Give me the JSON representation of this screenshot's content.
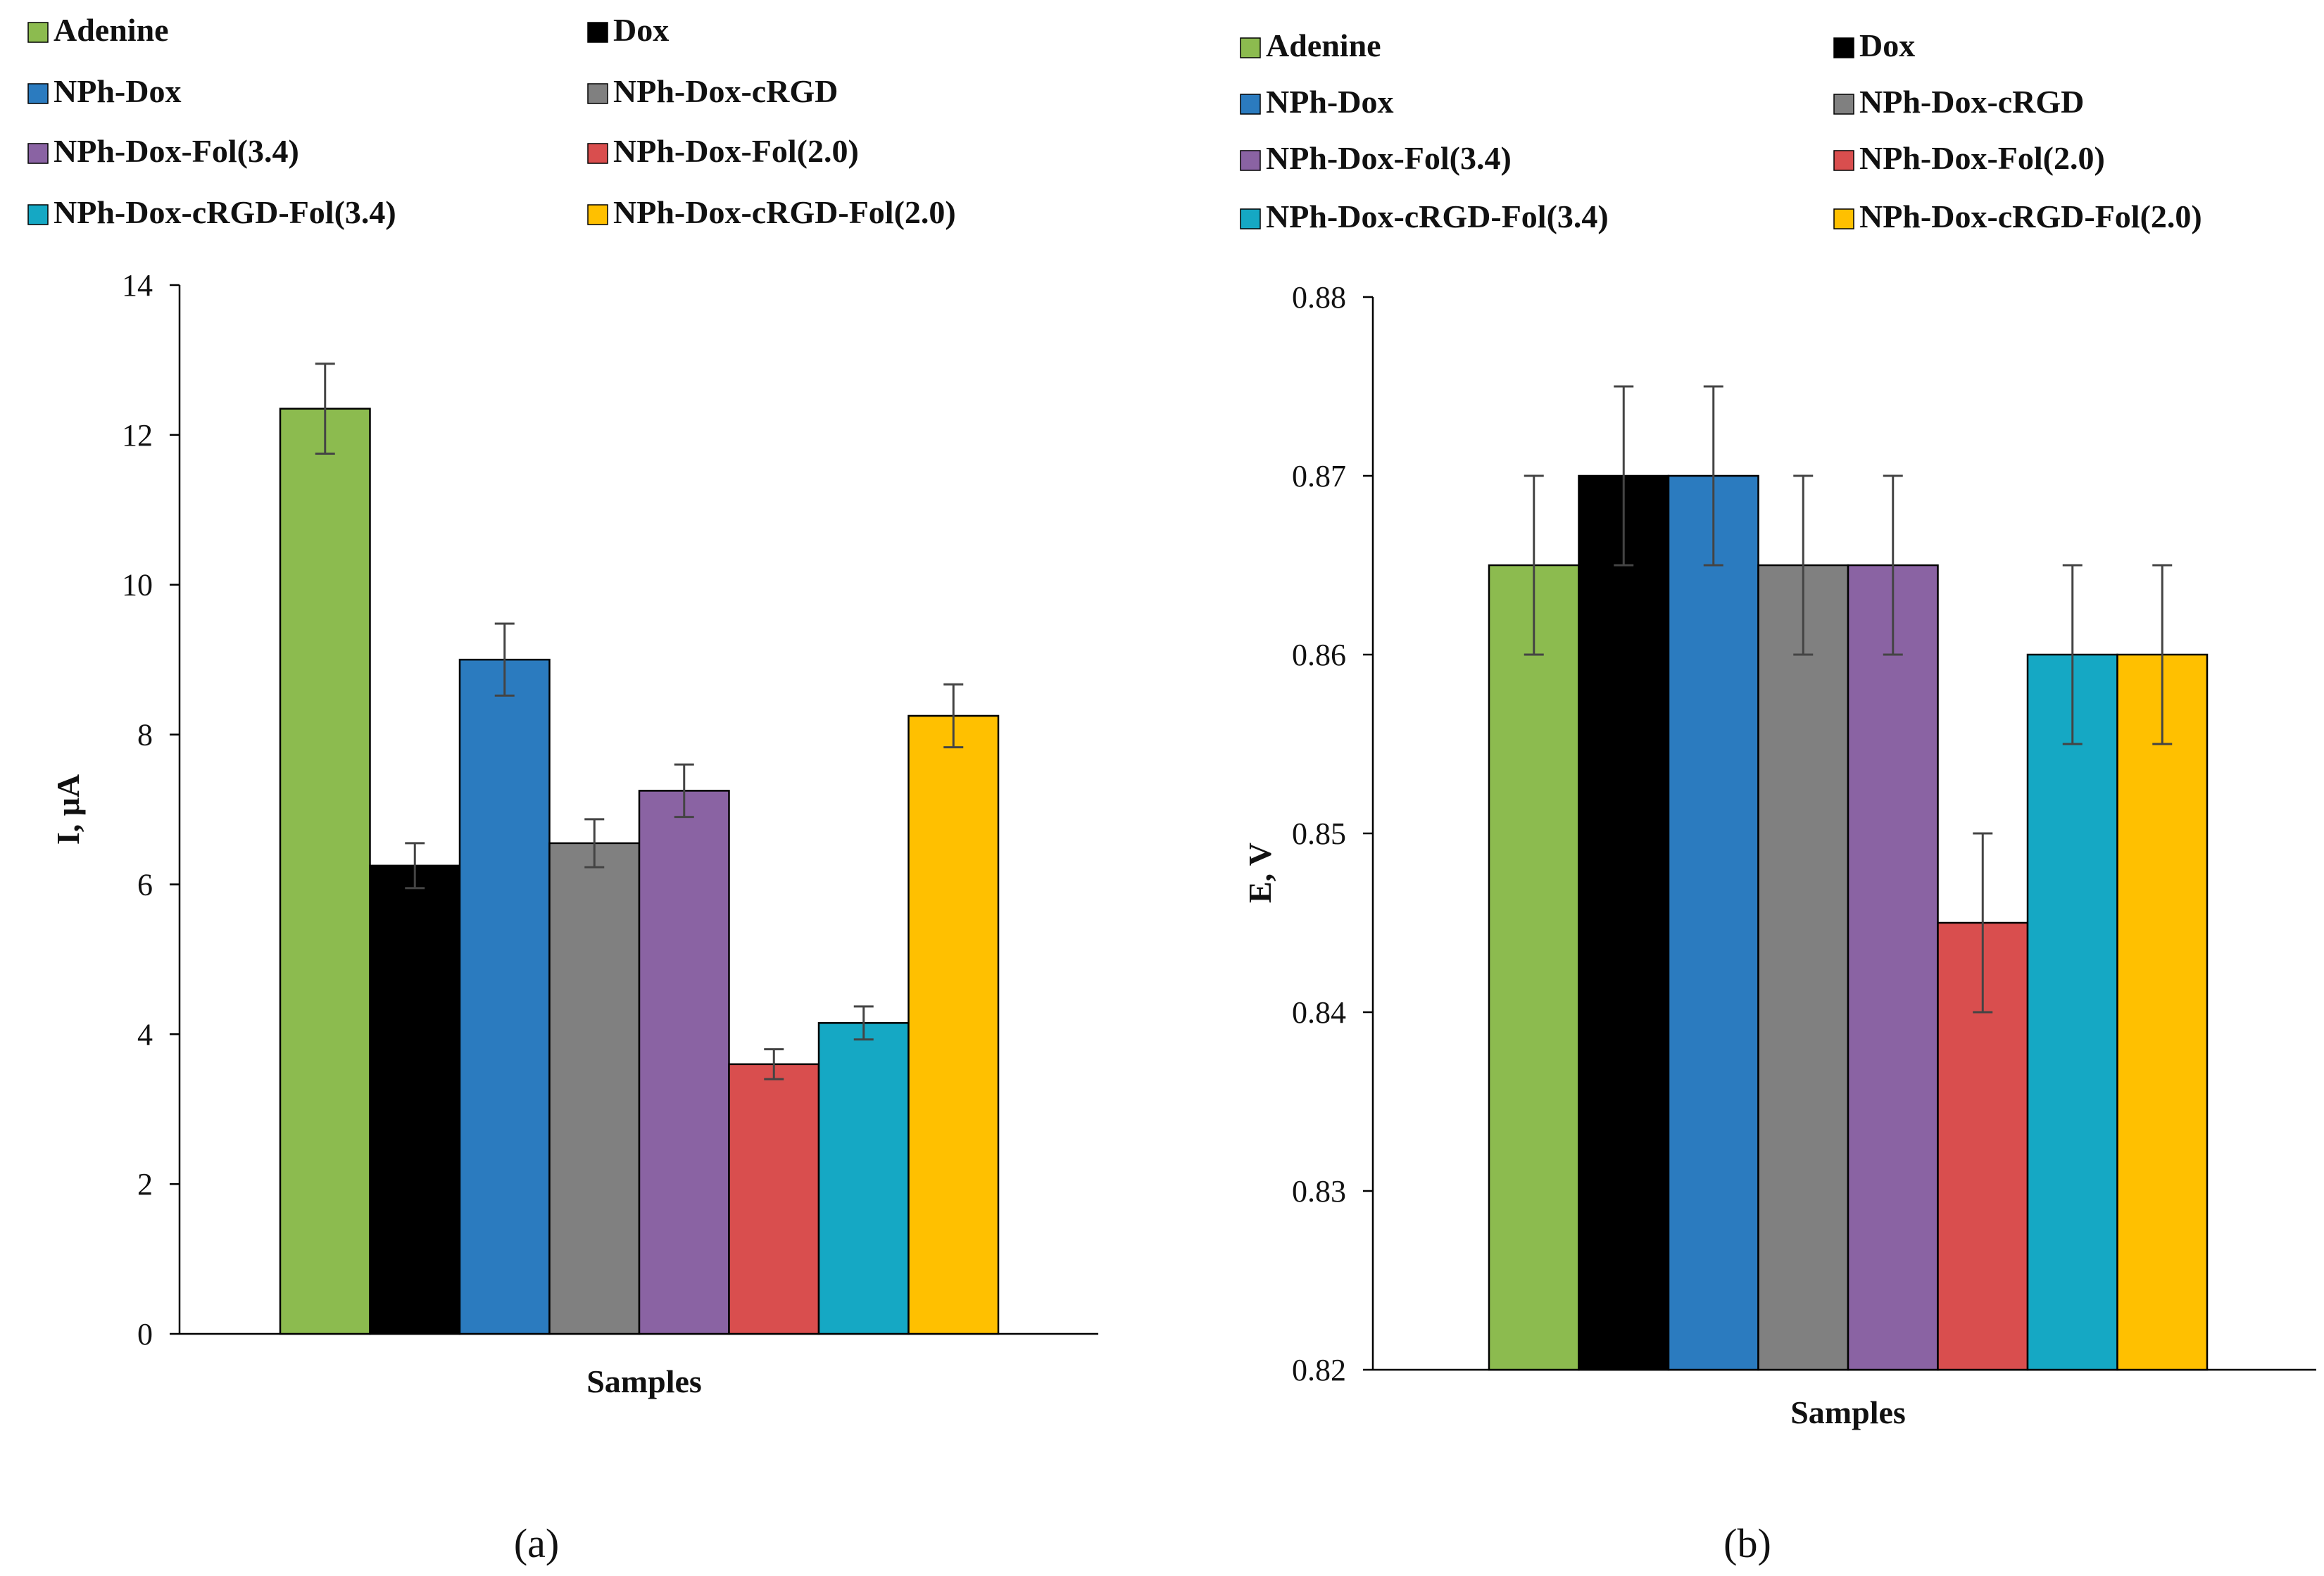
{
  "chart_data": [
    {
      "type": "bar",
      "panel_label": "(a)",
      "xlabel": "Samples",
      "ylabel": "I, μA",
      "ylim": [
        0,
        14
      ],
      "yticks": [
        0,
        2,
        4,
        6,
        8,
        10,
        12,
        14
      ],
      "ytick_labels": [
        "0",
        "2",
        "4",
        "6",
        "8",
        "10",
        "12",
        "14"
      ],
      "grid": false,
      "legend_position": "top",
      "series": [
        {
          "name": "Adenine",
          "value": 12.35,
          "error": 0.6,
          "color": "#8cbb4f"
        },
        {
          "name": "Dox",
          "value": 6.25,
          "error": 0.3,
          "color": "#000000"
        },
        {
          "name": "NPh-Dox",
          "value": 9.0,
          "error": 0.48,
          "color": "#2b7bbf"
        },
        {
          "name": "NPh-Dox-cRGD",
          "value": 6.55,
          "error": 0.32,
          "color": "#808080"
        },
        {
          "name": "NPh-Dox-Fol(3.4)",
          "value": 7.25,
          "error": 0.35,
          "color": "#8a63a3"
        },
        {
          "name": "NPh-Dox-Fol(2.0)",
          "value": 3.6,
          "error": 0.2,
          "color": "#d94e4e"
        },
        {
          "name": "NPh-Dox-cRGD-Fol(3.4)",
          "value": 4.15,
          "error": 0.22,
          "color": "#15a8c4"
        },
        {
          "name": "NPh-Dox-cRGD-Fol(2.0)",
          "value": 8.25,
          "error": 0.42,
          "color": "#ffc000"
        }
      ]
    },
    {
      "type": "bar",
      "panel_label": "(b)",
      "xlabel": "Samples",
      "ylabel": "E, V",
      "ylim": [
        0.82,
        0.88
      ],
      "yticks": [
        0.82,
        0.83,
        0.84,
        0.85,
        0.86,
        0.87,
        0.88
      ],
      "ytick_labels": [
        "0.82",
        "0.83",
        "0.84",
        "0.85",
        "0.86",
        "0.87",
        "0.88"
      ],
      "grid": false,
      "legend_position": "top",
      "series": [
        {
          "name": "Adenine",
          "value": 0.865,
          "error": 0.005,
          "color": "#8cbb4f"
        },
        {
          "name": "Dox",
          "value": 0.87,
          "error": 0.005,
          "color": "#000000"
        },
        {
          "name": "NPh-Dox",
          "value": 0.87,
          "error": 0.005,
          "color": "#2b7bbf"
        },
        {
          "name": "NPh-Dox-cRGD",
          "value": 0.865,
          "error": 0.005,
          "color": "#808080"
        },
        {
          "name": "NPh-Dox-Fol(3.4)",
          "value": 0.865,
          "error": 0.005,
          "color": "#8a63a3"
        },
        {
          "name": "NPh-Dox-Fol(2.0)",
          "value": 0.845,
          "error": 0.005,
          "color": "#d94e4e"
        },
        {
          "name": "NPh-Dox-cRGD-Fol(3.4)",
          "value": 0.86,
          "error": 0.005,
          "color": "#15a8c4"
        },
        {
          "name": "NPh-Dox-cRGD-Fol(2.0)",
          "value": 0.86,
          "error": 0.005,
          "color": "#ffc000"
        }
      ]
    }
  ]
}
